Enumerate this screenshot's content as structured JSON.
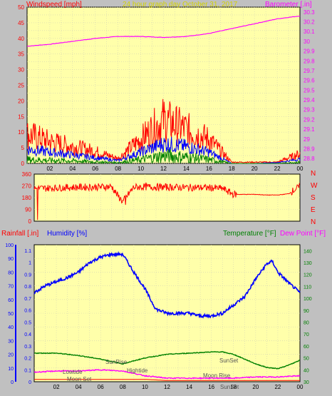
{
  "colors": {
    "bg": "#c0c0c0",
    "plot": "#ffffaa",
    "grid": "#d2d2b4",
    "wind": "#ff0000",
    "gust": "#0000ff",
    "wind_avg": "#008000",
    "baro": "#ff00ff",
    "title": "#d2d200",
    "temp": "#008000",
    "hum": "#0000ff",
    "rain": "#ff0000",
    "dew": "#ff00ff",
    "dir": "#ff0000"
  },
  "chart_data": [
    {
      "type": "line",
      "title": "24 hour graph day   October 31, 2017",
      "ylabel_left": "Windspeed [mph]",
      "ylabel_right": "Barometer [.in]",
      "x_ticks": [
        "02",
        "04",
        "06",
        "08",
        "10",
        "12",
        "14",
        "16",
        "18",
        "20",
        "22",
        "00"
      ],
      "y_left_ticks": [
        "0",
        "5",
        "10",
        "15",
        "20",
        "25",
        "30",
        "35",
        "40",
        "45",
        "50"
      ],
      "y_right_ticks": [
        "28.8",
        "28.9",
        "29",
        "29.1",
        "29.2",
        "29.3",
        "29.4",
        "29.5",
        "29.6",
        "29.7",
        "29.8",
        "29.9",
        "30",
        "30.1",
        "30.2",
        "30.3"
      ],
      "ylim_left": [
        0,
        50
      ],
      "ylim_right": [
        28.75,
        30.35
      ],
      "series": [
        {
          "key": "baro",
          "x": [
            0,
            2,
            4,
            6,
            8,
            10,
            12,
            14,
            16,
            18,
            20,
            22,
            24
          ],
          "y": [
            29.95,
            29.97,
            30.0,
            30.03,
            30.05,
            30.05,
            30.04,
            30.05,
            30.08,
            30.13,
            30.18,
            30.23,
            30.26
          ]
        },
        {
          "key": "wind_max",
          "x": [
            0,
            2,
            4,
            6,
            8,
            10,
            12,
            14,
            16,
            18,
            20,
            22,
            24
          ],
          "y": [
            12,
            9,
            7,
            5,
            2,
            10,
            18,
            14,
            10,
            0.5,
            0.5,
            0.5,
            4
          ]
        },
        {
          "key": "gust",
          "x": [
            0,
            2,
            4,
            6,
            8,
            10,
            12,
            14,
            16,
            18,
            20,
            22,
            24
          ],
          "y": [
            5,
            4,
            3,
            2,
            1,
            4,
            7,
            6,
            4,
            0,
            0,
            0.3,
            1.5
          ]
        },
        {
          "key": "wind_avg",
          "x": [
            0,
            2,
            4,
            6,
            8,
            10,
            12,
            14,
            16,
            18,
            20,
            22,
            24
          ],
          "y": [
            1.5,
            1.2,
            1,
            0.6,
            0.3,
            1.5,
            3,
            2.5,
            1.5,
            0,
            0,
            0,
            0.5
          ]
        }
      ]
    },
    {
      "type": "line",
      "y_ticks": [
        "360",
        "270",
        "180",
        "90",
        "0"
      ],
      "right_labels": [
        "N",
        "W",
        "S",
        "E",
        "N"
      ],
      "ylim": [
        0,
        360
      ],
      "series": [
        {
          "key": "direction",
          "x": [
            0,
            2,
            4,
            6,
            7,
            7.5,
            8,
            9,
            10,
            12,
            14,
            16,
            17,
            18,
            20,
            21,
            22,
            23,
            23.5,
            24
          ],
          "y": [
            250,
            255,
            260,
            262,
            265,
            200,
            150,
            260,
            262,
            260,
            258,
            255,
            250,
            205,
            205,
            200,
            200,
            210,
            240,
            265
          ]
        }
      ]
    },
    {
      "type": "line",
      "ylabel_rain": "Rainfall [.in]",
      "ylabel_hum": "Humidity [%]",
      "ylabel_temp": "Temperature [°F]",
      "ylabel_dew": "Dew Point [°F]",
      "x_ticks": [
        "02",
        "04",
        "06",
        "08",
        "10",
        "12",
        "14",
        "16",
        "18",
        "20",
        "22",
        "00"
      ],
      "hum_ticks": [
        "0",
        "10",
        "20",
        "30",
        "40",
        "50",
        "60",
        "70",
        "80",
        "90",
        "100"
      ],
      "rain_ticks": [
        "0",
        "0.1",
        "0.2",
        "0.3",
        "0.4",
        "0.5",
        "0.6",
        "0.7",
        "0.8",
        "0.9",
        "1",
        "1.1"
      ],
      "temp_ticks": [
        "30",
        "40",
        "50",
        "60",
        "70",
        "80",
        "90",
        "100",
        "110",
        "120",
        "130",
        "140"
      ],
      "ylim_hum": [
        0,
        100
      ],
      "ylim_temp": [
        30,
        145
      ],
      "series": [
        {
          "key": "humidity",
          "x": [
            0,
            1,
            2,
            3,
            4,
            5,
            6,
            7,
            8,
            9,
            10,
            10.5,
            11,
            12,
            13,
            14,
            15,
            16,
            17,
            18,
            19,
            20,
            21,
            21.5,
            22,
            23,
            24
          ],
          "y": [
            65,
            70,
            73,
            76,
            80,
            87,
            91,
            93,
            93,
            80,
            68,
            60,
            53,
            50,
            50,
            50,
            48,
            48,
            50,
            56,
            62,
            75,
            86,
            88,
            80,
            72,
            65
          ]
        },
        {
          "key": "temperature",
          "x": [
            0,
            2,
            4,
            6,
            8,
            10,
            12,
            14,
            16,
            17,
            18,
            19,
            20,
            21,
            22,
            23,
            24
          ],
          "y": [
            54,
            54,
            52,
            49,
            45,
            50,
            53,
            54,
            55,
            55,
            53,
            49,
            45,
            42,
            41,
            44,
            48
          ]
        },
        {
          "key": "dewpoint",
          "x": [
            0,
            2,
            4,
            6,
            8,
            9,
            10,
            11,
            12,
            14,
            16,
            18,
            20,
            22,
            24
          ],
          "y": [
            38,
            39,
            39,
            40,
            39,
            37,
            35,
            34,
            33,
            33,
            33,
            33,
            34,
            34,
            35
          ]
        },
        {
          "key": "rain",
          "x": [
            0,
            2,
            4,
            6,
            8,
            10,
            12,
            14,
            16,
            18,
            20,
            22,
            24
          ],
          "y": [
            0.02,
            0.02,
            0.02,
            0.02,
            0.02,
            0.02,
            0.01,
            0.01,
            0.01,
            0.01,
            0.01,
            0.01,
            0.01
          ]
        }
      ],
      "annotations": {
        "sunrise": "SunRise",
        "sunset": "SunSet",
        "lowtide": "Lowtide",
        "hightide": "Hightide",
        "moonset": "Moon Set",
        "moonrise": "Moon Rise",
        "sunset2": "SunSet"
      }
    }
  ]
}
